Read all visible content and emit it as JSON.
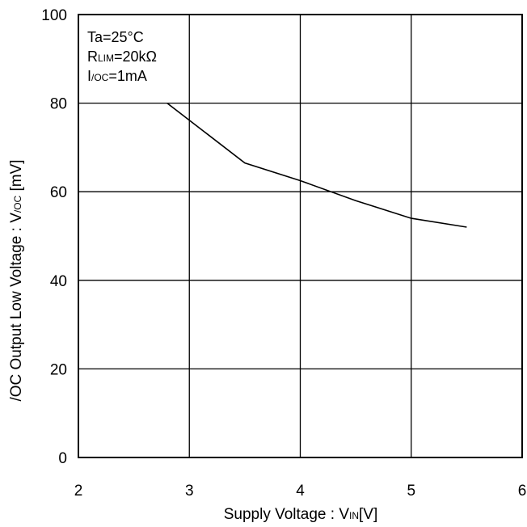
{
  "chart_data": {
    "type": "line",
    "xlabel": {
      "main": "Supply Voltage : V",
      "sub": "IN",
      "unit": "[V]"
    },
    "ylabel": {
      "main": "/OC Output Low Voltage : V",
      "sub": "/OC",
      "unit": " [mV]"
    },
    "xlim": [
      2,
      6
    ],
    "ylim": [
      0,
      100
    ],
    "x_ticks": [
      2,
      3,
      4,
      5,
      6
    ],
    "y_ticks": [
      0,
      20,
      40,
      60,
      80,
      100
    ],
    "x_tick_labels": [
      "2",
      "3",
      "4",
      "5",
      "6"
    ],
    "y_tick_labels": [
      "0",
      "20",
      "40",
      "60",
      "80",
      "100"
    ],
    "grid": true,
    "series": [
      {
        "x": [
          2.8,
          3.5,
          4.0,
          4.5,
          5.0,
          5.5
        ],
        "y": [
          80.0,
          66.5,
          62.5,
          58.0,
          54.0,
          52.0
        ],
        "color": "#000000"
      }
    ],
    "annotation": {
      "line1": "Ta=25°C",
      "line2_main": "R",
      "line2_sub": "LIM",
      "line2_rest": "=20kΩ",
      "line3_main": "I",
      "line3_sub": "/OC",
      "line3_rest": "=1mA"
    }
  }
}
